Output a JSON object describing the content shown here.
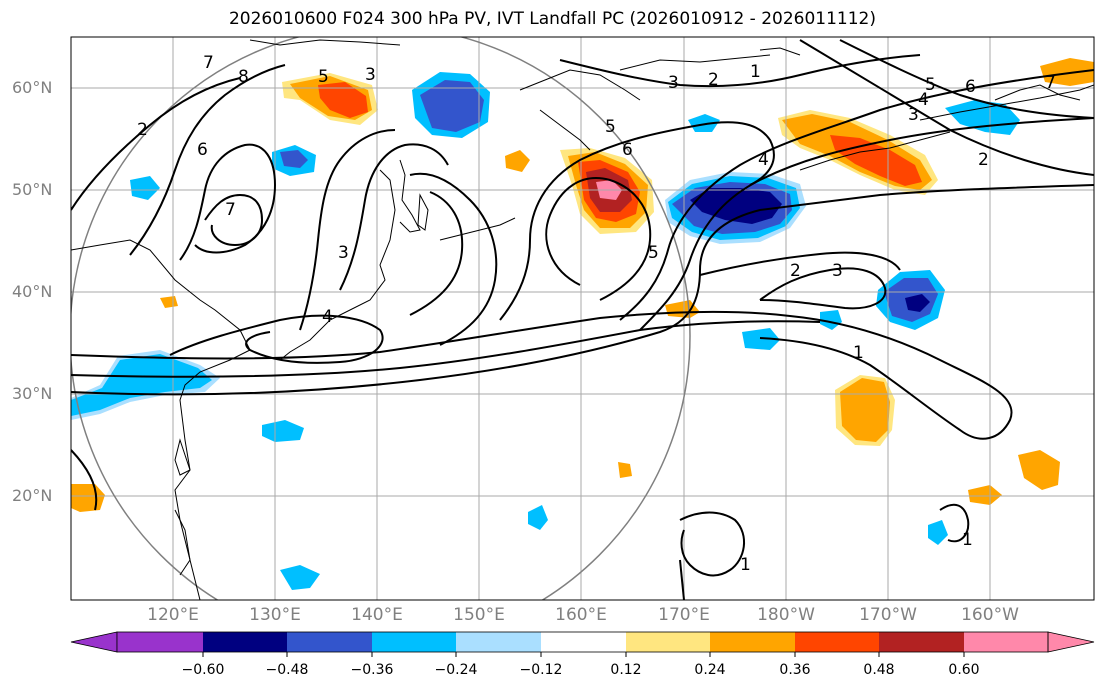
{
  "title": "2026010600 F024 300 hPa PV, IVT Landfall PC (2026010912 - 2026011112)",
  "lat_labels": [
    "60°N",
    "50°N",
    "40°N",
    "30°N",
    "20°N"
  ],
  "lon_labels": [
    "120°E",
    "130°E",
    "140°E",
    "150°E",
    "160°E",
    "170°E",
    "180°W",
    "170°W",
    "160°W"
  ],
  "colorbar": {
    "ticks": [
      "−0.60",
      "−0.48",
      "−0.36",
      "−0.24",
      "−0.12",
      "0.12",
      "0.24",
      "0.36",
      "0.48",
      "0.60"
    ],
    "colors": [
      "#9933cc",
      "#000080",
      "#3355cc",
      "#00bfff",
      "#aadfff",
      "#ffffff",
      "#ffe680",
      "#ffa500",
      "#ff4500",
      "#b22222",
      "#ff88aa"
    ]
  },
  "contour_labels": [
    "1",
    "2",
    "3",
    "4",
    "5",
    "6",
    "7",
    "8"
  ]
}
